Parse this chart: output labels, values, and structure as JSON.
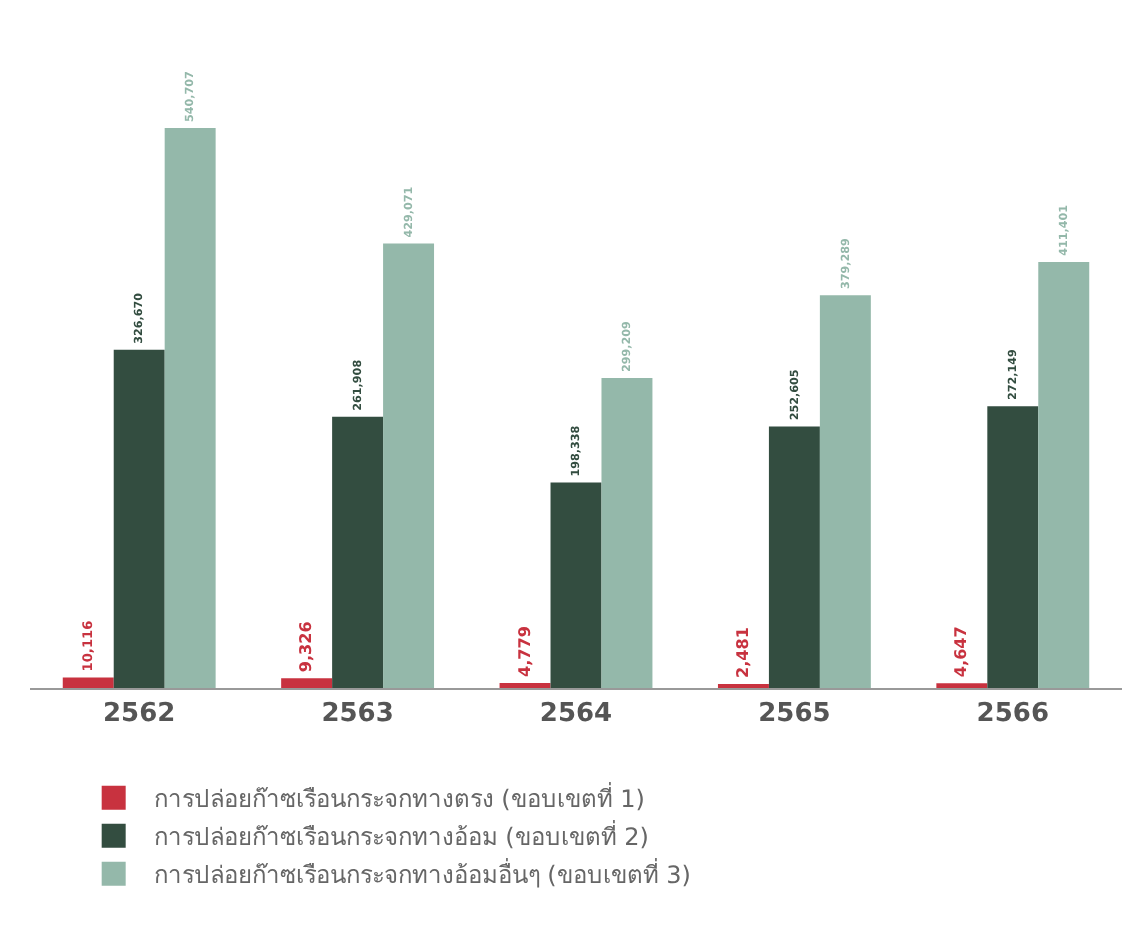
{
  "chart_data": {
    "type": "bar",
    "categories": [
      "2562",
      "2563",
      "2564",
      "2565",
      "2566"
    ],
    "series": [
      {
        "name": "การปล่อยก๊าซเรือนกระจกทางตรง (ขอบเขตที่ 1)",
        "color": "#c8323f",
        "values": [
          10116,
          9326,
          4779,
          2481,
          4647
        ],
        "value_labels": [
          "10,116",
          "9,326",
          "4,779",
          "2,481",
          "4,647"
        ]
      },
      {
        "name": "การปล่อยก๊าซเรือนกระจกทางอ้อม (ขอบเขตที่ 2)",
        "color": "#334d40",
        "values": [
          326670,
          261908,
          198338,
          252605,
          272149
        ],
        "value_labels": [
          "326,670",
          "261,908",
          "198,338",
          "252,605",
          "272,149"
        ]
      },
      {
        "name": "การปล่อยก๊าซเรือนกระจกทางอ้อมอื่นๆ (ขอบเขตที่ 3)",
        "color": "#94b8aa",
        "values": [
          540707,
          429071,
          299209,
          379289,
          411401
        ],
        "value_labels": [
          "540,707",
          "429,071",
          "299,209",
          "379,289",
          "411,401"
        ]
      }
    ],
    "tick_labels": "x",
    "legend": "bottom left"
  }
}
